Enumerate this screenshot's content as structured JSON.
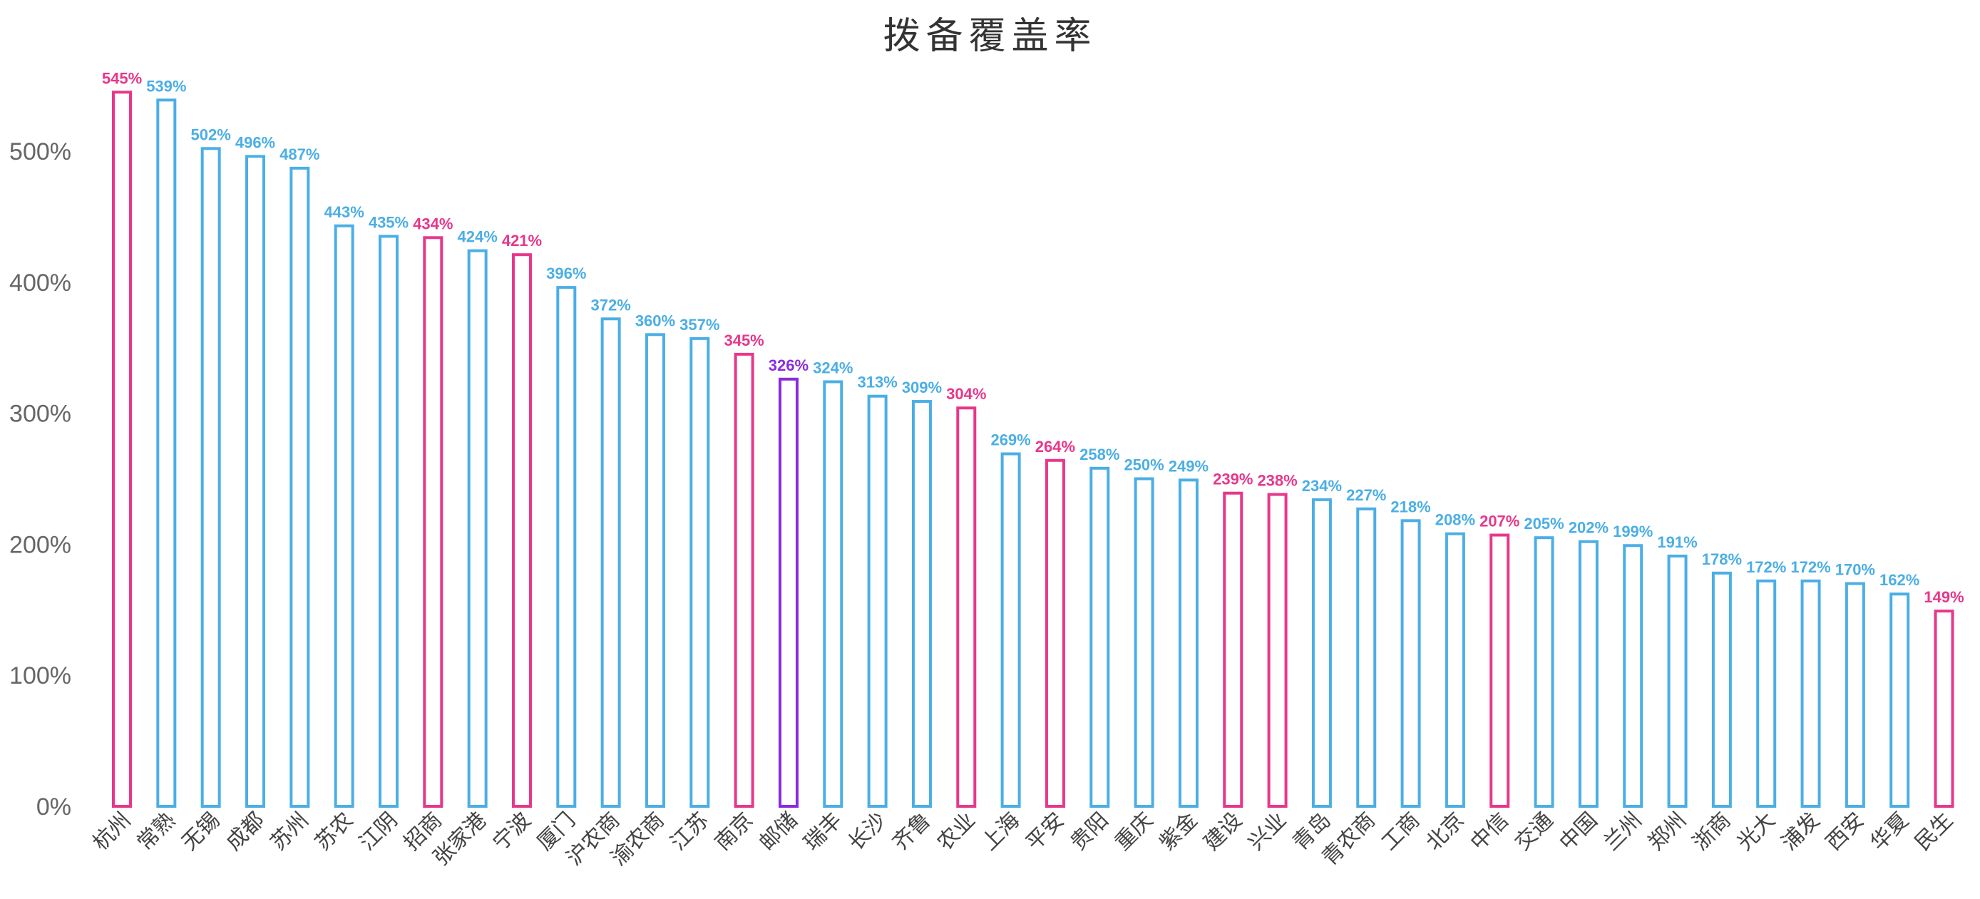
{
  "chart_data": {
    "type": "bar",
    "title": "拨备覆盖率",
    "xlabel": "",
    "ylabel": "",
    "ylim": [
      0,
      550
    ],
    "yticks": [
      0,
      100,
      200,
      300,
      400,
      500
    ],
    "ytick_labels": [
      "0%",
      "100%",
      "200%",
      "300%",
      "400%",
      "500%"
    ],
    "grid": false,
    "legend": "none",
    "colors": {
      "blue": "#4BAEE6",
      "pink": "#E8378A",
      "purple": "#8A2BE2"
    },
    "categories": [
      "杭州",
      "常熟",
      "无锡",
      "成都",
      "苏州",
      "苏农",
      "江阴",
      "招商",
      "张家港",
      "宁波",
      "厦门",
      "沪农商",
      "渝农商",
      "江苏",
      "南京",
      "邮储",
      "瑞丰",
      "长沙",
      "齐鲁",
      "农业",
      "上海",
      "平安",
      "贵阳",
      "重庆",
      "紫金",
      "建设",
      "兴业",
      "青岛",
      "青农商",
      "工商",
      "北京",
      "中信",
      "交通",
      "中国",
      "兰州",
      "郑州",
      "浙商",
      "光大",
      "浦发",
      "西安",
      "华夏",
      "民生"
    ],
    "values": [
      545,
      539,
      502,
      496,
      487,
      443,
      435,
      434,
      424,
      421,
      396,
      372,
      360,
      357,
      345,
      326,
      324,
      313,
      309,
      304,
      269,
      264,
      258,
      250,
      249,
      239,
      238,
      234,
      227,
      218,
      208,
      207,
      205,
      202,
      199,
      191,
      178,
      172,
      172,
      170,
      162,
      149
    ],
    "data_labels": [
      "545%",
      "539%",
      "502%",
      "496%",
      "487%",
      "443%",
      "435%",
      "434%",
      "424%",
      "421%",
      "396%",
      "372%",
      "360%",
      "357%",
      "345%",
      "326%",
      "324%",
      "313%",
      "309%",
      "304%",
      "269%",
      "264%",
      "258%",
      "250%",
      "249%",
      "239%",
      "238%",
      "234%",
      "227%",
      "218%",
      "208%",
      "207%",
      "205%",
      "202%",
      "199%",
      "191%",
      "178%",
      "172%",
      "172%",
      "170%",
      "162%",
      "149%"
    ],
    "bar_colors": [
      "pink",
      "blue",
      "blue",
      "blue",
      "blue",
      "blue",
      "blue",
      "pink",
      "blue",
      "pink",
      "blue",
      "blue",
      "blue",
      "blue",
      "pink",
      "purple",
      "blue",
      "blue",
      "blue",
      "pink",
      "blue",
      "pink",
      "blue",
      "blue",
      "blue",
      "pink",
      "pink",
      "blue",
      "blue",
      "blue",
      "blue",
      "pink",
      "blue",
      "blue",
      "blue",
      "blue",
      "blue",
      "blue",
      "blue",
      "blue",
      "blue",
      "pink"
    ]
  }
}
